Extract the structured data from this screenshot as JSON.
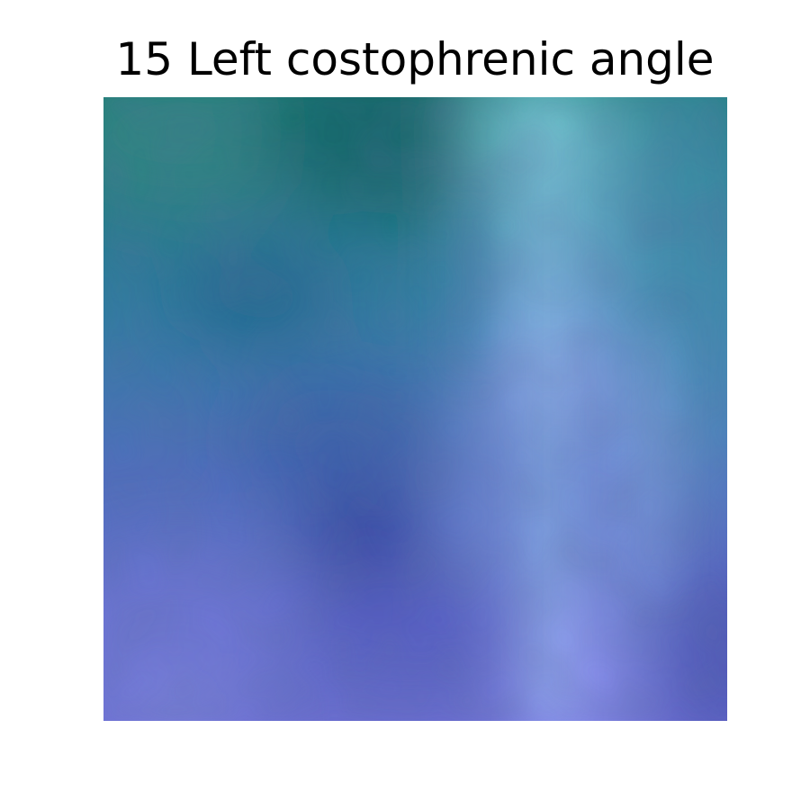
{
  "figure": {
    "title": "15 Left costophrenic angle"
  },
  "image": {
    "palette": {
      "top_left": "#2f8a80",
      "top_center": "#0e6c68",
      "top_right_highlight": "#7bd6de",
      "top_right": "#4fa9b8",
      "mid_left": "#3f7aa6",
      "center_dark": "#3b4fa3",
      "bottom_left": "#6f74d4",
      "bottom_center": "#5d5fc6",
      "bottom_right_highlight": "#959cf7",
      "bottom_right": "#5a62c0"
    }
  }
}
